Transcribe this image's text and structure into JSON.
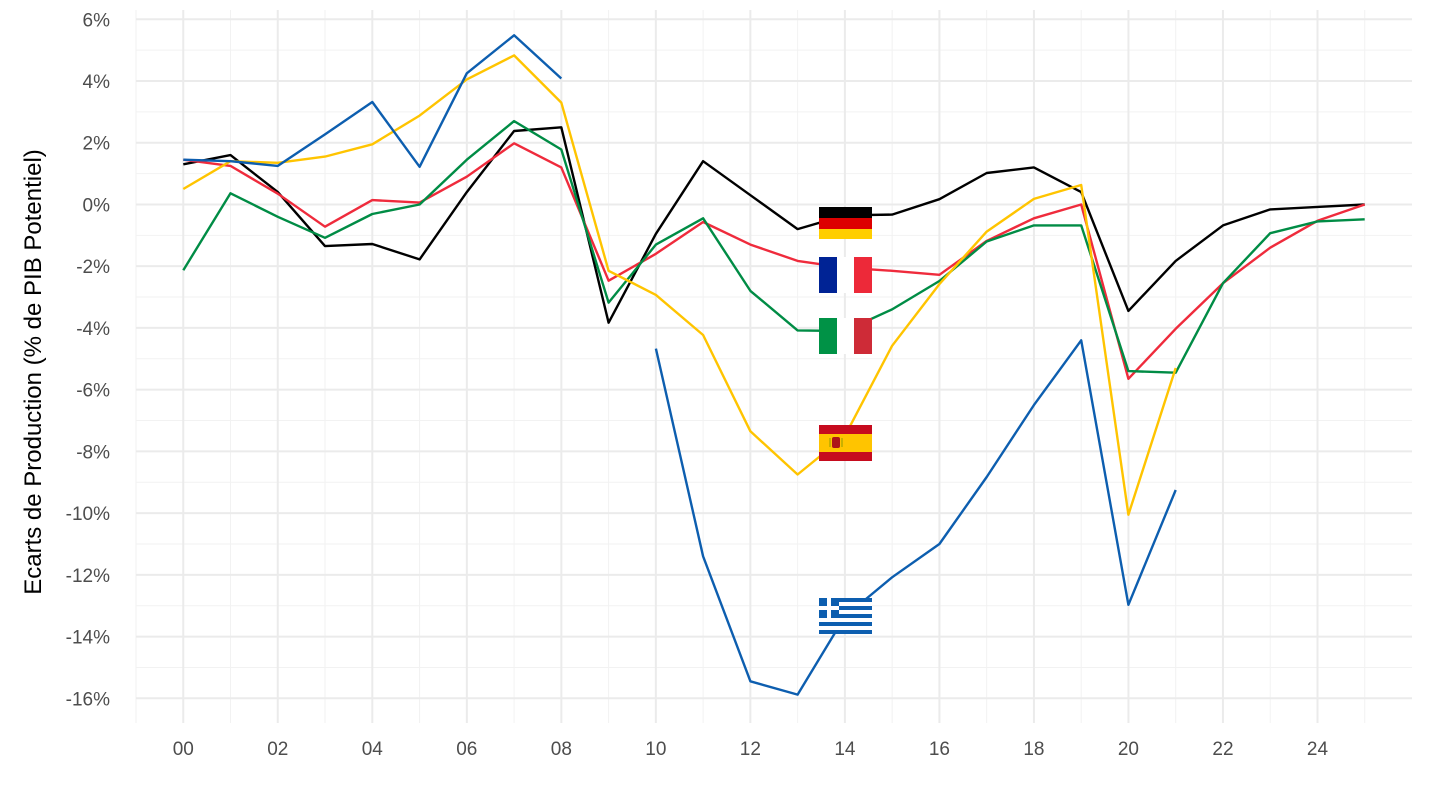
{
  "chart_data": {
    "type": "line",
    "title": "",
    "xlabel": "",
    "ylabel": "Ecarts de Production (% de PIB Potentiel)",
    "x": [
      0,
      1,
      2,
      3,
      4,
      5,
      6,
      7,
      8,
      9,
      10,
      11,
      12,
      13,
      14,
      15,
      16,
      17,
      18,
      19,
      20,
      21,
      22,
      23,
      24,
      25
    ],
    "xlim": [
      -1,
      26
    ],
    "ylim": [
      -16.8,
      6.3
    ],
    "x_ticks": [
      {
        "value": 0,
        "label": "00"
      },
      {
        "value": 2,
        "label": "02"
      },
      {
        "value": 4,
        "label": "04"
      },
      {
        "value": 6,
        "label": "06"
      },
      {
        "value": 8,
        "label": "08"
      },
      {
        "value": 10,
        "label": "10"
      },
      {
        "value": 12,
        "label": "12"
      },
      {
        "value": 14,
        "label": "14"
      },
      {
        "value": 16,
        "label": "16"
      },
      {
        "value": 18,
        "label": "18"
      },
      {
        "value": 20,
        "label": "20"
      },
      {
        "value": 22,
        "label": "22"
      },
      {
        "value": 24,
        "label": "24"
      }
    ],
    "y_ticks": [
      {
        "value": 6,
        "label": "6%"
      },
      {
        "value": 4,
        "label": "4%"
      },
      {
        "value": 2,
        "label": "2%"
      },
      {
        "value": 0,
        "label": "0%"
      },
      {
        "value": -2,
        "label": "-2%"
      },
      {
        "value": -4,
        "label": "-4%"
      },
      {
        "value": -6,
        "label": "-6%"
      },
      {
        "value": -8,
        "label": "-8%"
      },
      {
        "value": -10,
        "label": "-10%"
      },
      {
        "value": -12,
        "label": "-12%"
      },
      {
        "value": -14,
        "label": "-14%"
      },
      {
        "value": -16,
        "label": "-16%"
      }
    ],
    "grid": true,
    "legend": "none",
    "series": [
      {
        "color": "#000000",
        "flag": "germany-flag",
        "values": [
          1.3,
          1.6,
          0.4,
          -1.35,
          -1.28,
          -1.78,
          0.4,
          2.38,
          2.5,
          -3.83,
          -0.95,
          1.4,
          0.3,
          -0.8,
          -0.35,
          -0.33,
          0.17,
          1.02,
          1.2,
          0.4,
          -3.45,
          -1.83,
          -0.68,
          -0.16,
          -0.08,
          0.0
        ]
      },
      {
        "color": "#ef2b3c",
        "flag": "france-flag",
        "values": [
          1.45,
          1.25,
          0.35,
          -0.72,
          0.14,
          0.06,
          0.9,
          1.98,
          1.2,
          -2.47,
          -1.6,
          -0.57,
          -1.3,
          -1.83,
          -2.05,
          -2.15,
          -2.28,
          -1.18,
          -0.45,
          0.0,
          -5.65,
          -4.03,
          -2.55,
          -1.4,
          -0.53,
          0.0
        ]
      },
      {
        "color": "#008c45",
        "flag": "italy-flag",
        "values": [
          -2.13,
          0.36,
          -0.4,
          -1.08,
          -0.31,
          0.0,
          1.45,
          2.7,
          1.78,
          -3.18,
          -1.3,
          -0.45,
          -2.8,
          -4.08,
          -4.1,
          -3.4,
          -2.48,
          -1.2,
          -0.68,
          -0.68,
          -5.4,
          -5.45,
          -2.55,
          -0.93,
          -0.55,
          -0.48
        ]
      },
      {
        "color": "#ffc400",
        "flag": "spain-flag",
        "values": [
          0.5,
          1.4,
          1.35,
          1.55,
          1.95,
          2.88,
          4.05,
          4.83,
          3.3,
          -2.15,
          -2.93,
          -4.23,
          -7.35,
          -8.75,
          -7.5,
          -4.58,
          -2.58,
          -0.88,
          0.18,
          0.63,
          -10.05,
          -5.3,
          null,
          null,
          null,
          null
        ]
      },
      {
        "color": "#0d5eaf",
        "flag": "greece-flag",
        "values": [
          1.45,
          1.4,
          1.25,
          2.27,
          3.32,
          1.22,
          4.25,
          5.48,
          4.08,
          null,
          -4.67,
          -11.4,
          -15.45,
          -15.88,
          -13.35,
          -12.08,
          -11.0,
          -8.83,
          -6.5,
          -4.4,
          -12.97,
          -9.25,
          null,
          null,
          null,
          null
        ]
      }
    ]
  }
}
